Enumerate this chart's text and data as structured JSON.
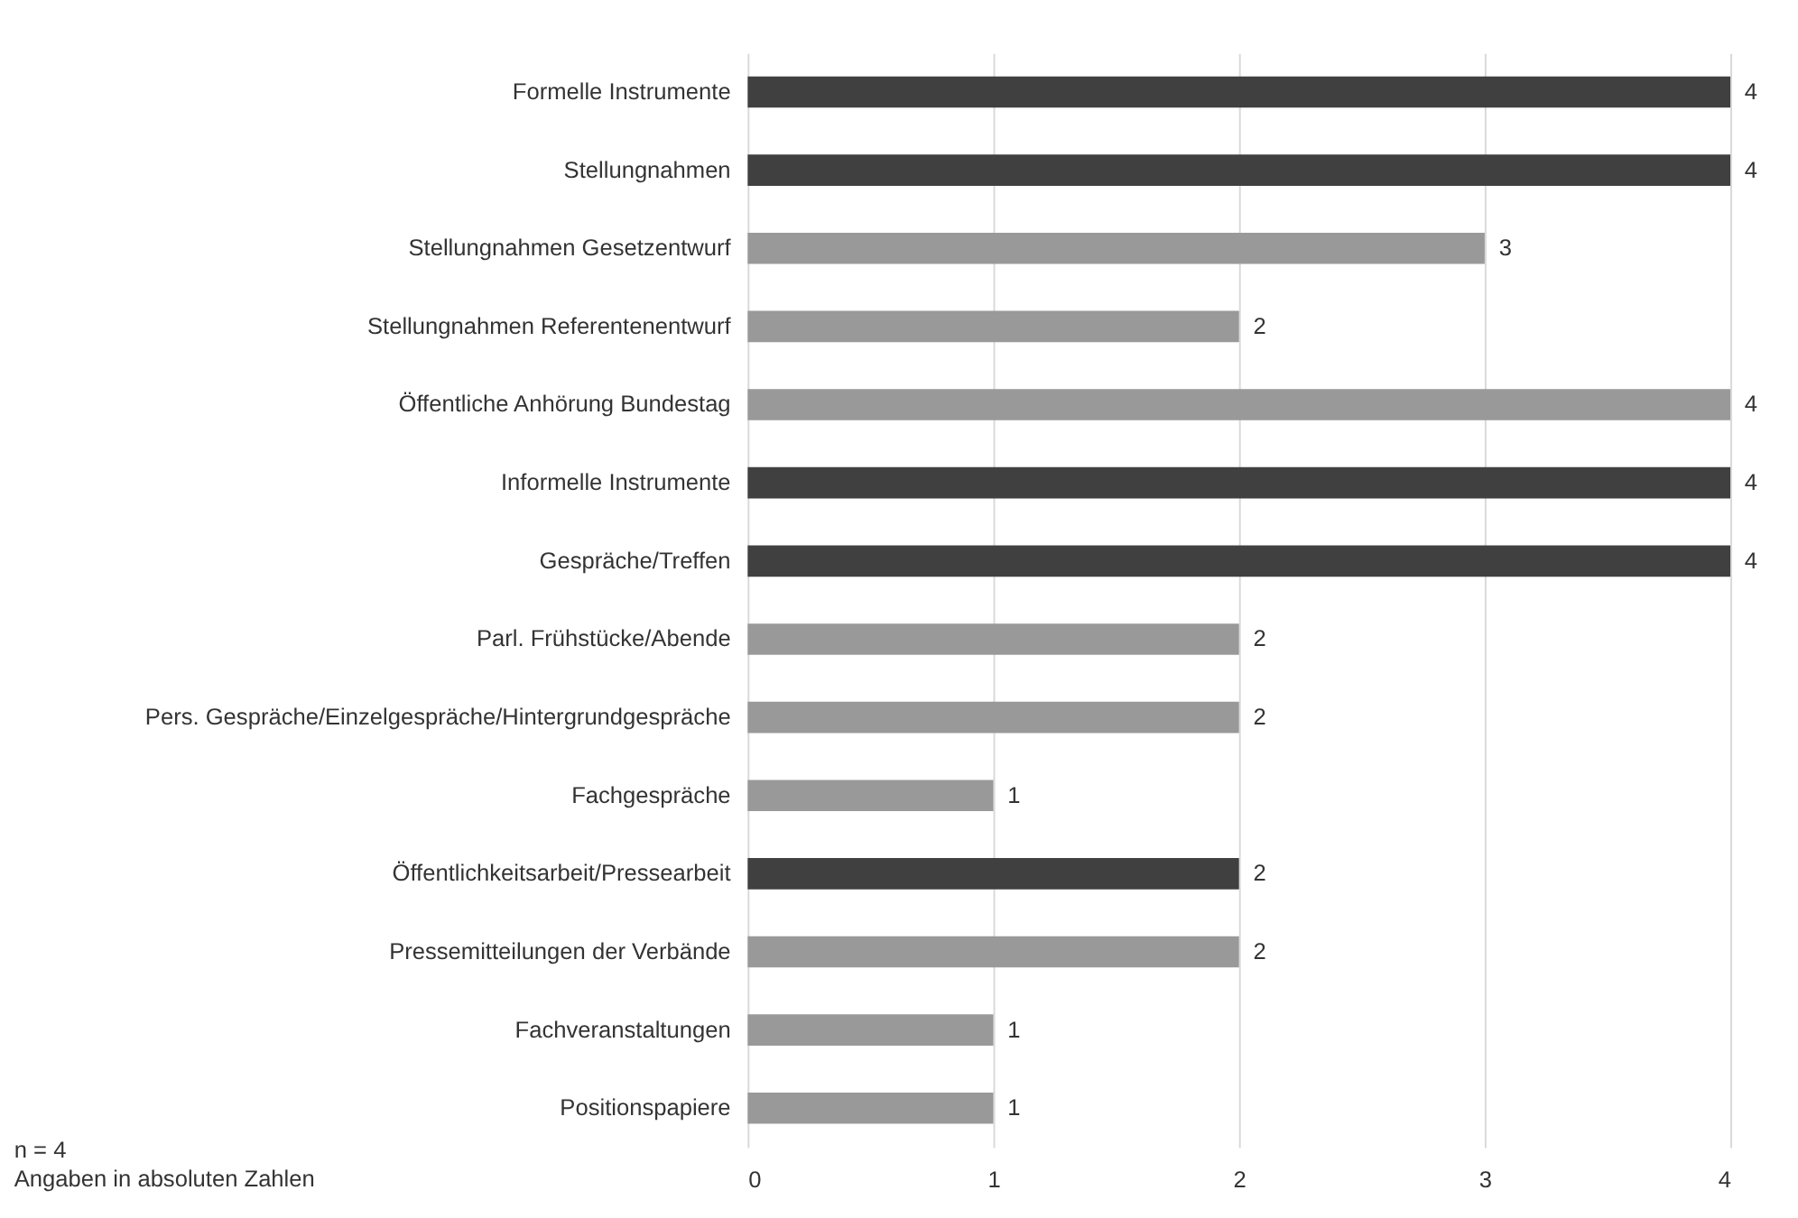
{
  "chart_data": {
    "type": "bar",
    "orientation": "horizontal",
    "categories": [
      "Formelle Instrumente",
      "Stellungnahmen",
      "Stellungnahmen Gesetzentwurf",
      "Stellungnahmen Referentenentwurf",
      "Öffentliche Anhörung Bundestag",
      "Informelle Instrumente",
      "Gespräche/Treffen",
      "Parl. Frühstücke/Abende",
      "Pers. Gespräche/Einzelgespräche/Hintergrundgespräche",
      "Fachgespräche",
      "Öffentlichkeitsarbeit/Pressearbeit",
      "Pressemitteilungen der Verbände",
      "Fachveranstaltungen",
      "Positionspapiere"
    ],
    "values": [
      4,
      4,
      3,
      2,
      4,
      4,
      4,
      2,
      2,
      1,
      2,
      2,
      1,
      1
    ],
    "colors": [
      "#404040",
      "#404040",
      "#999999",
      "#999999",
      "#999999",
      "#404040",
      "#404040",
      "#999999",
      "#999999",
      "#999999",
      "#404040",
      "#999999",
      "#999999",
      "#999999"
    ],
    "xlim": [
      0,
      4
    ],
    "xticks": [
      0,
      1,
      2,
      3,
      4
    ],
    "grid": "x",
    "data_labels": true,
    "annotations": [
      "n = 4",
      "Angaben in absoluten Zahlen"
    ]
  }
}
